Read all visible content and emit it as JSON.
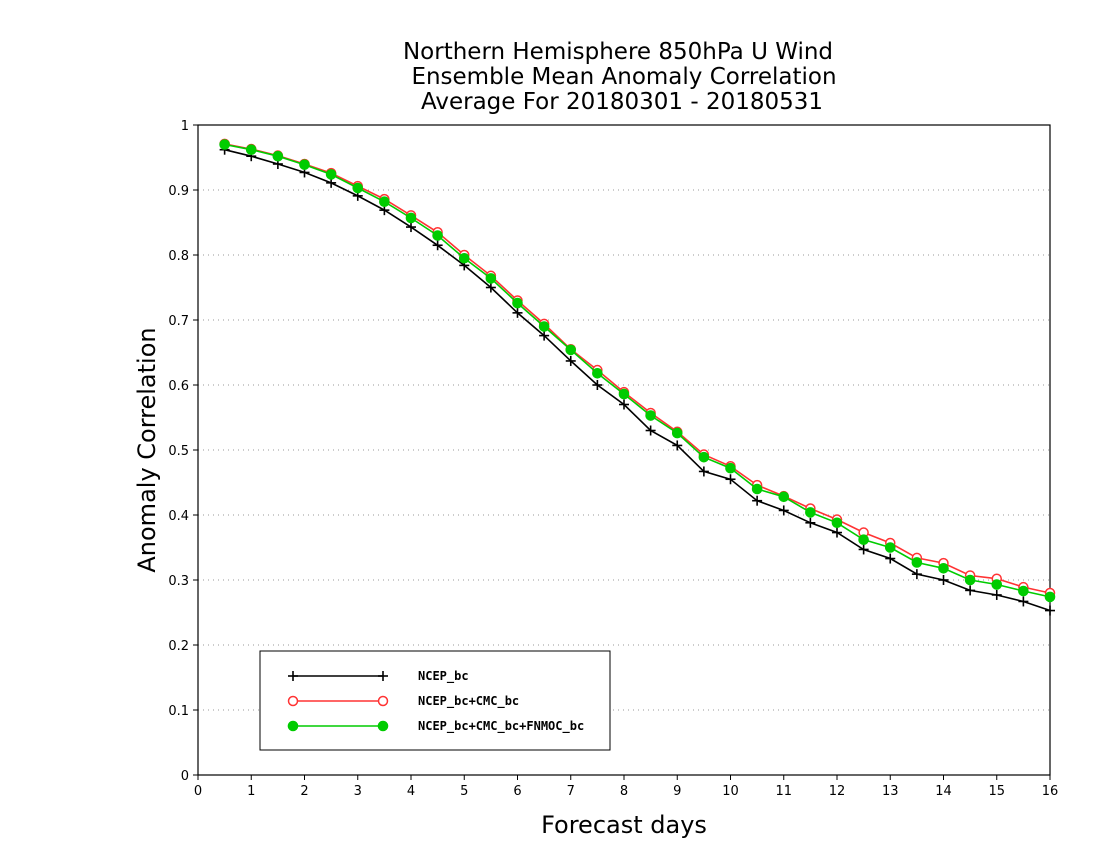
{
  "chart_data": {
    "type": "line",
    "title": [
      "Northern Hemisphere 850hPa U Wind",
      "Ensemble Mean Anomaly Correlation",
      "Average For 20180301 - 20180531"
    ],
    "xlabel": "Forecast days",
    "ylabel": "Anomaly Correlation",
    "xlim": [
      0,
      16
    ],
    "ylim": [
      0,
      1
    ],
    "xticks": [
      "0",
      "1",
      "2",
      "3",
      "4",
      "5",
      "6",
      "7",
      "8",
      "9",
      "10",
      "11",
      "12",
      "13",
      "14",
      "15",
      "16"
    ],
    "yticks": [
      "0",
      "0.1",
      "0.2",
      "0.3",
      "0.4",
      "0.5",
      "0.6",
      "0.7",
      "0.8",
      "0.9",
      "1"
    ],
    "grid": "horizontal dotted",
    "legend_position": "bottom-left",
    "x": [
      0.5,
      1,
      1.5,
      2,
      2.5,
      3,
      3.5,
      4,
      4.5,
      5,
      5.5,
      6,
      6.5,
      7,
      7.5,
      8,
      8.5,
      9,
      9.5,
      10,
      10.5,
      11,
      11.5,
      12,
      12.5,
      13,
      13.5,
      14,
      14.5,
      15,
      15.5,
      16
    ],
    "series": [
      {
        "name": "NCEP_bc",
        "color": "#000000",
        "marker": "plus",
        "values": [
          0.962,
          0.952,
          0.94,
          0.927,
          0.911,
          0.891,
          0.869,
          0.843,
          0.815,
          0.784,
          0.75,
          0.711,
          0.676,
          0.637,
          0.6,
          0.57,
          0.53,
          0.507,
          0.467,
          0.455,
          0.422,
          0.407,
          0.388,
          0.373,
          0.347,
          0.333,
          0.309,
          0.3,
          0.284,
          0.277,
          0.267,
          0.253
        ]
      },
      {
        "name": "NCEP_bc+CMC_bc",
        "color": "#ff3333",
        "marker": "open-circle",
        "values": [
          0.971,
          0.963,
          0.953,
          0.94,
          0.926,
          0.906,
          0.886,
          0.861,
          0.835,
          0.8,
          0.768,
          0.73,
          0.694,
          0.655,
          0.623,
          0.589,
          0.557,
          0.528,
          0.493,
          0.475,
          0.446,
          0.429,
          0.41,
          0.393,
          0.373,
          0.357,
          0.334,
          0.326,
          0.307,
          0.302,
          0.289,
          0.28
        ]
      },
      {
        "name": "NCEP_bc+CMC_bc+FNMOC_bc",
        "color": "#00cc00",
        "marker": "filled-circle",
        "values": [
          0.97,
          0.962,
          0.952,
          0.939,
          0.924,
          0.903,
          0.882,
          0.857,
          0.83,
          0.795,
          0.764,
          0.726,
          0.69,
          0.654,
          0.618,
          0.586,
          0.553,
          0.526,
          0.489,
          0.472,
          0.44,
          0.428,
          0.404,
          0.388,
          0.362,
          0.35,
          0.327,
          0.318,
          0.3,
          0.293,
          0.283,
          0.274
        ]
      }
    ]
  }
}
